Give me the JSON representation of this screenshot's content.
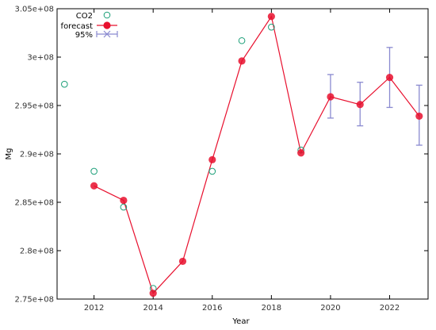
{
  "chart_data": {
    "type": "line",
    "xlabel": "Year",
    "ylabel": "Mg",
    "xlim": [
      2010.75,
      2023.3
    ],
    "ylim": [
      275000000,
      305000000
    ],
    "x_ticks": [
      2012,
      2014,
      2016,
      2018,
      2020,
      2022
    ],
    "x_tick_labels": [
      "2012",
      "2014",
      "2016",
      "2018",
      "2020",
      "2022"
    ],
    "y_ticks": [
      275000000,
      280000000,
      285000000,
      290000000,
      295000000,
      300000000,
      305000000
    ],
    "y_tick_labels": [
      "2.75e+08",
      "2.8e+08",
      "2.85e+08",
      "2.9e+08",
      "2.95e+08",
      "3e+08",
      "3.05e+08"
    ],
    "grid": false,
    "legend_position": "top-left",
    "series": [
      {
        "name": "CO2",
        "style": "open-circle",
        "color": "#1a9e77",
        "x": [
          2011,
          2012,
          2013,
          2014,
          2016,
          2017,
          2018,
          2019
        ],
        "y": [
          297200000,
          288200000,
          284500000,
          276100000,
          288200000,
          301700000,
          303100000,
          290400000
        ]
      },
      {
        "name": "forecast",
        "style": "line-filled-circle",
        "color": "#e8102e",
        "x": [
          2012,
          2013,
          2014,
          2015,
          2016,
          2017,
          2018,
          2019,
          2020,
          2021,
          2022,
          2023
        ],
        "y": [
          286700000,
          285200000,
          275600000,
          278900000,
          289400000,
          299600000,
          304200000,
          290100000,
          295900000,
          295100000,
          297900000,
          293900000
        ]
      },
      {
        "name": "95%",
        "style": "errorbar",
        "color": "#8a8ad0",
        "x": [
          2020,
          2021,
          2022,
          2023
        ],
        "lower": [
          293700000,
          292900000,
          294800000,
          290900000
        ],
        "upper": [
          298200000,
          297400000,
          301000000,
          297100000
        ]
      }
    ]
  }
}
